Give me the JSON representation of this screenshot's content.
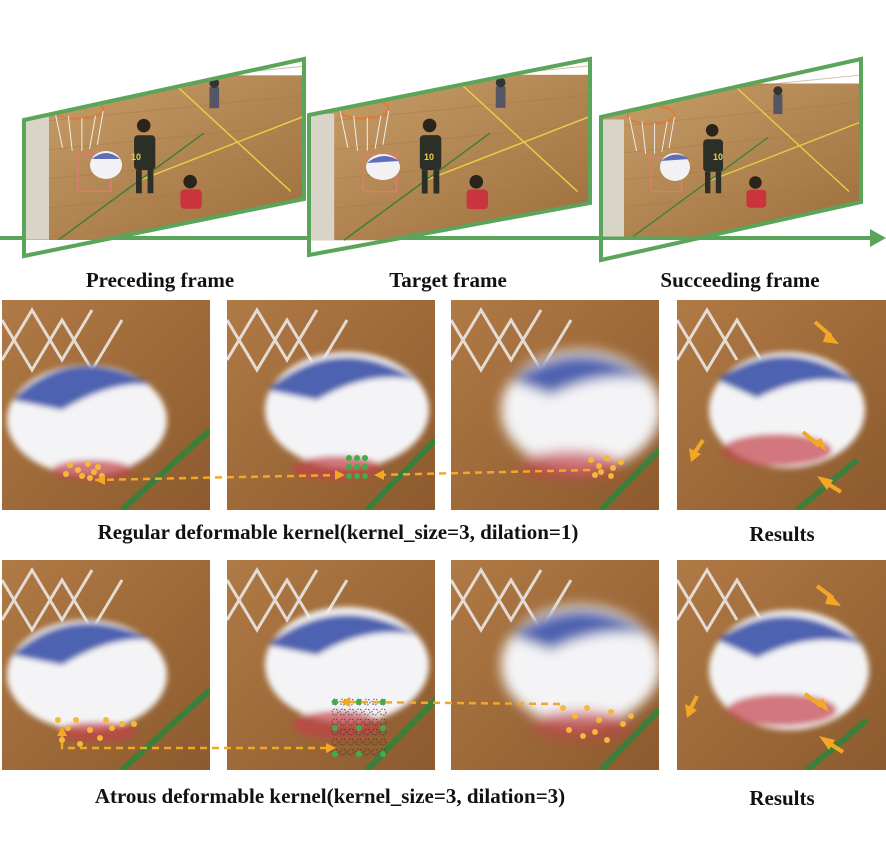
{
  "captions": {
    "preceding": "Preceding frame",
    "target": "Target frame",
    "succeeding": "Succeeding frame",
    "row1": "Regular deformable kernel(kernel_size=3, dilation=1)",
    "row1_results": "Results",
    "row2": "Atrous deformable kernel(kernel_size=3, dilation=3)",
    "row2_results": "Results"
  },
  "jerseys": {
    "player_number": "10"
  },
  "colors": {
    "timeline": "#5aa55a",
    "court": "#b98a52",
    "sampling_point": "#f4b93a",
    "kernel_center": "#3fae4a",
    "arrow": "#f2a825",
    "bbox": "#e07b74"
  }
}
